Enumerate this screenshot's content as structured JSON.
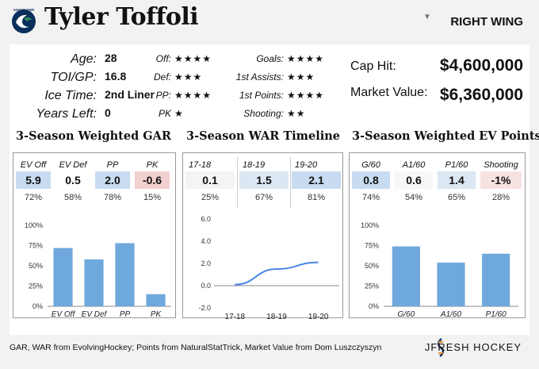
{
  "header": {
    "team_logo": "vancouver-canucks-logo",
    "team_wordmark": "VANCOUVER",
    "player_name": "Tyler Toffoli",
    "position": "RIGHT WING"
  },
  "bio": [
    {
      "label": "Age:",
      "value": "28"
    },
    {
      "label": "TOI/GP:",
      "value": "16.8"
    },
    {
      "label": "Ice Time:",
      "value": "2nd Liner"
    },
    {
      "label": "Years Left:",
      "value": "0"
    }
  ],
  "ratings_left": [
    {
      "label": "Off:",
      "stars": "★★★★"
    },
    {
      "label": "Def:",
      "stars": "★★★"
    },
    {
      "label": "PP:",
      "stars": "★★★★"
    },
    {
      "label": "PK",
      "stars": "★"
    }
  ],
  "ratings_right": [
    {
      "label": "Goals:",
      "stars": "★★★★"
    },
    {
      "label": "1st Assists:",
      "stars": "★★★"
    },
    {
      "label": "1st Points:",
      "stars": "★★★★"
    },
    {
      "label": "Shooting:",
      "stars": "★★"
    }
  ],
  "contract": {
    "cap_hit_label": "Cap Hit:",
    "cap_hit_value": "$4,600,000",
    "market_value_label": "Market Value:",
    "market_value_value": "$6,360,000"
  },
  "gar": {
    "title": "3-Season Weighted GAR",
    "cells": [
      {
        "header": "EV Off",
        "value": "5.9",
        "pct": "72%",
        "color": "#c7dcf0"
      },
      {
        "header": "EV Def",
        "value": "0.5",
        "pct": "58%",
        "color": "#ffffff"
      },
      {
        "header": "PP",
        "value": "2.0",
        "pct": "78%",
        "color": "#c7dcf0"
      },
      {
        "header": "PK",
        "value": "-0.6",
        "pct": "15%",
        "color": "#f2d0d0"
      }
    ]
  },
  "war": {
    "title": "3-Season WAR Timeline",
    "cells": [
      {
        "header": "17-18",
        "value": "0.1",
        "pct": "25%",
        "color": "#f4f4f4"
      },
      {
        "header": "18-19",
        "value": "1.5",
        "pct": "67%",
        "color": "#dbe7f3"
      },
      {
        "header": "19-20",
        "value": "2.1",
        "pct": "81%",
        "color": "#c7dcf0"
      }
    ]
  },
  "ev": {
    "title": "3-Season Weighted EV Points",
    "cells": [
      {
        "header": "G/60",
        "value": "0.8",
        "pct": "74%",
        "color": "#c7dcf0"
      },
      {
        "header": "A1/60",
        "value": "0.6",
        "pct": "54%",
        "color": "#f7f7f7"
      },
      {
        "header": "P1/60",
        "value": "1.4",
        "pct": "65%",
        "color": "#dbe7f3"
      },
      {
        "header": "Shooting",
        "value": "-1%",
        "pct": "28%",
        "color": "#f7e2e2"
      }
    ]
  },
  "chart_data": [
    {
      "type": "bar",
      "categories": [
        "EV Off",
        "EV Def",
        "PP",
        "PK"
      ],
      "values": [
        72,
        58,
        78,
        15
      ],
      "yticks": [
        "0%",
        "25%",
        "50%",
        "75%",
        "100%"
      ],
      "ylim": [
        0,
        100
      ],
      "grid": false,
      "bar_color": "#6fa8dc"
    },
    {
      "type": "line",
      "categories": [
        "17-18",
        "18-19",
        "19-20"
      ],
      "values": [
        0.1,
        1.5,
        2.1
      ],
      "yticks": [
        "-2.0",
        "0.0",
        "2.0",
        "4.0",
        "6.0"
      ],
      "ylim": [
        -2,
        6
      ],
      "grid": false,
      "line_color": "#4a86e8"
    },
    {
      "type": "bar",
      "categories": [
        "G/60",
        "A1/60",
        "P1/60"
      ],
      "values": [
        74,
        54,
        65
      ],
      "yticks": [
        "0%",
        "25%",
        "50%",
        "75%",
        "100%"
      ],
      "ylim": [
        0,
        100
      ],
      "grid": false,
      "bar_color": "#6fa8dc"
    }
  ],
  "footer": {
    "sources": "GAR, WAR from EvolvingHockey; Points from NaturalStatTrick, Market Value from Dom Luszczyszyn",
    "brand": "JFRESH HOCKEY"
  }
}
